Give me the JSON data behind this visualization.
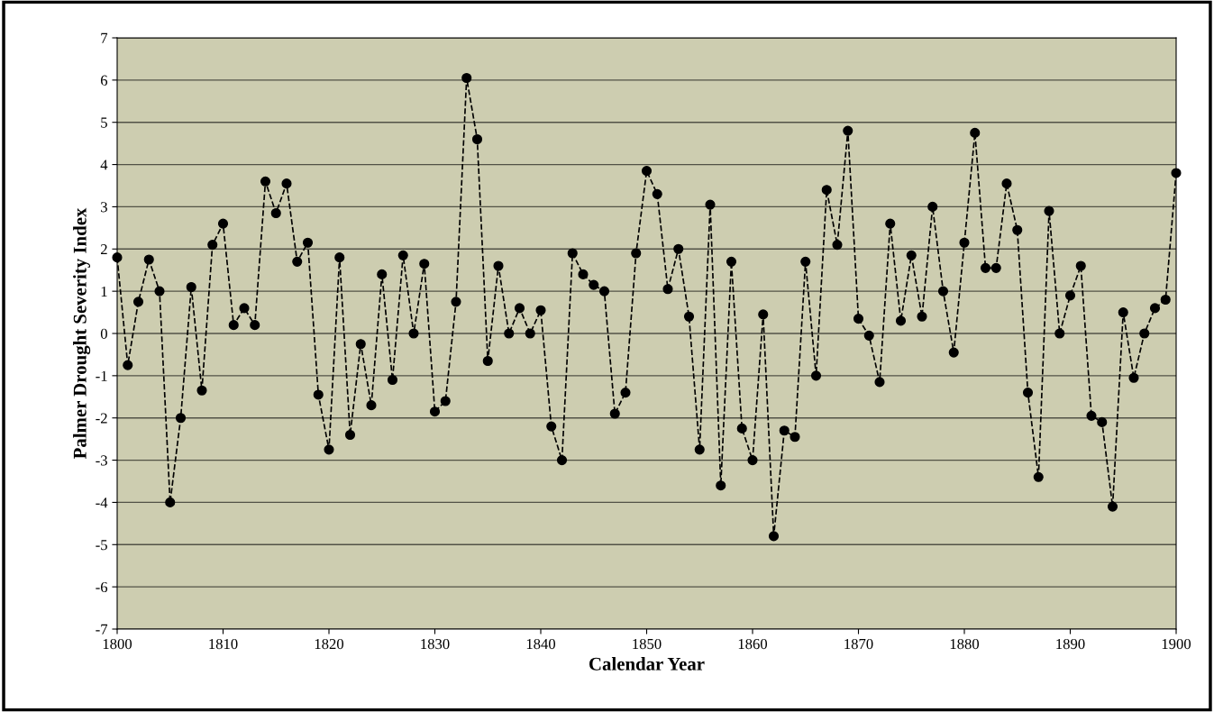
{
  "chart_data": {
    "type": "line",
    "xlabel": "Calendar Year",
    "ylabel": "Palmer Drought Severity Index",
    "x": [
      1800,
      1801,
      1802,
      1803,
      1804,
      1805,
      1806,
      1807,
      1808,
      1809,
      1810,
      1811,
      1812,
      1813,
      1814,
      1815,
      1816,
      1817,
      1818,
      1819,
      1820,
      1821,
      1822,
      1823,
      1824,
      1825,
      1826,
      1827,
      1828,
      1829,
      1830,
      1831,
      1832,
      1833,
      1834,
      1835,
      1836,
      1837,
      1838,
      1839,
      1840,
      1841,
      1842,
      1843,
      1844,
      1845,
      1846,
      1847,
      1848,
      1849,
      1850,
      1851,
      1852,
      1853,
      1854,
      1855,
      1856,
      1857,
      1858,
      1859,
      1860,
      1861,
      1862,
      1863,
      1864,
      1865,
      1866,
      1867,
      1868,
      1869,
      1870,
      1871,
      1872,
      1873,
      1874,
      1875,
      1876,
      1877,
      1878,
      1879,
      1880,
      1881,
      1882,
      1883,
      1884,
      1885,
      1886,
      1887,
      1888,
      1889,
      1890,
      1891,
      1892,
      1893,
      1894,
      1895,
      1896,
      1897,
      1898,
      1899,
      1900
    ],
    "series": [
      {
        "color": "#000000",
        "values": [
          1.8,
          -0.75,
          0.75,
          1.75,
          1.0,
          -4.0,
          -2.0,
          1.1,
          -1.35,
          2.1,
          2.6,
          0.2,
          0.6,
          0.2,
          3.6,
          2.85,
          3.55,
          1.7,
          2.15,
          -1.45,
          -2.75,
          1.8,
          -2.4,
          -0.25,
          -1.7,
          1.4,
          -1.1,
          1.85,
          0.0,
          1.65,
          -1.85,
          -1.6,
          0.75,
          6.05,
          4.6,
          -0.65,
          1.6,
          0.0,
          0.6,
          0.0,
          0.55,
          -2.2,
          -3.0,
          1.9,
          1.4,
          1.15,
          1.0,
          -1.9,
          -1.4,
          1.9,
          3.85,
          3.3,
          1.05,
          2.0,
          0.4,
          -2.75,
          3.05,
          -3.6,
          1.7,
          -2.25,
          -3.0,
          0.45,
          -4.8,
          -2.3,
          -2.45,
          1.7,
          -1.0,
          3.4,
          2.1,
          4.8,
          0.35,
          -0.05,
          -1.15,
          2.6,
          0.3,
          1.85,
          0.4,
          3.0,
          1.0,
          -0.45,
          2.15,
          4.75,
          1.55,
          1.55,
          3.55,
          2.45,
          -1.4,
          -3.4,
          2.9,
          0.0,
          0.9,
          1.6,
          -1.95,
          -2.1,
          -4.1,
          0.5,
          -1.05,
          0.0,
          0.6,
          0.8,
          3.8
        ]
      }
    ],
    "xlim": [
      1800,
      1900
    ],
    "xticks": [
      1800,
      1810,
      1820,
      1830,
      1840,
      1850,
      1860,
      1870,
      1880,
      1890,
      1900
    ],
    "ylim": [
      -7,
      7
    ],
    "yticks": [
      -7,
      -6,
      -5,
      -4,
      -3,
      -2,
      -1,
      0,
      1,
      2,
      3,
      4,
      5,
      6,
      7
    ],
    "grid": "y",
    "marker": "circle",
    "line_style": "dashed"
  }
}
